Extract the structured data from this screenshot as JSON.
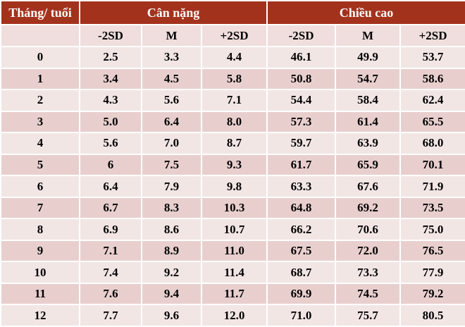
{
  "table": {
    "header": {
      "first": "Tháng/ tuổi",
      "groups": [
        "Cân nặng",
        "Chiều cao"
      ]
    },
    "subheader": [
      "-2SD",
      "M",
      "+2SD",
      "-2SD",
      "M",
      "+2SD"
    ],
    "rows": [
      [
        "0",
        "2.5",
        "3.3",
        "4.4",
        "46.1",
        "49.9",
        "53.7"
      ],
      [
        "1",
        "3.4",
        "4.5",
        "5.8",
        "50.8",
        "54.7",
        "58.6"
      ],
      [
        "2",
        "4.3",
        "5.6",
        "7.1",
        "54.4",
        "58.4",
        "62.4"
      ],
      [
        "3",
        "5.0",
        "6.4",
        "8.0",
        "57.3",
        "61.4",
        "65.5"
      ],
      [
        "4",
        "5.6",
        "7.0",
        "8.7",
        "59.7",
        "63.9",
        "68.0"
      ],
      [
        "5",
        "6",
        "7.5",
        "9.3",
        "61.7",
        "65.9",
        "70.1"
      ],
      [
        "6",
        "6.4",
        "7.9",
        "9.8",
        "63.3",
        "67.6",
        "71.9"
      ],
      [
        "7",
        "6.7",
        "8.3",
        "10.3",
        "64.8",
        "69.2",
        "73.5"
      ],
      [
        "8",
        "6.9",
        "8.6",
        "10.7",
        "66.2",
        "70.6",
        "75.0"
      ],
      [
        "9",
        "7.1",
        "8.9",
        "11.0",
        "67.5",
        "72.0",
        "76.5"
      ],
      [
        "10",
        "7.4",
        "9.2",
        "11.4",
        "68.7",
        "73.3",
        "77.9"
      ],
      [
        "11",
        "7.6",
        "9.4",
        "11.7",
        "69.9",
        "74.5",
        "79.2"
      ],
      [
        "12",
        "7.7",
        "9.6",
        "12.0",
        "71.0",
        "75.7",
        "80.5"
      ]
    ]
  }
}
